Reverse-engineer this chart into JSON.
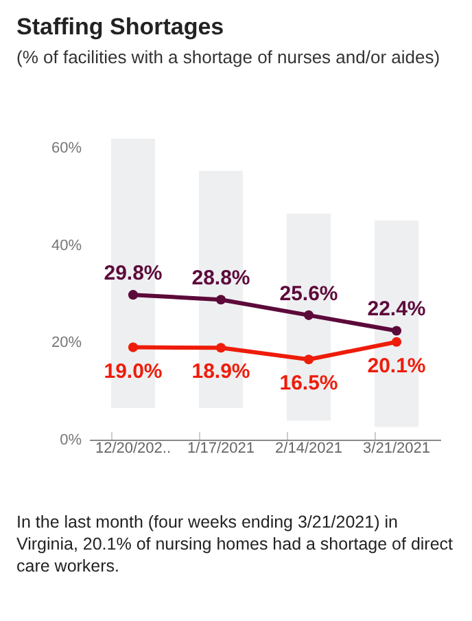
{
  "chart_data": {
    "type": "line",
    "title": "Staffing Shortages",
    "subtitle": "(% of facilities with a shortage of nurses and/or aides)",
    "categories": [
      "12/20/202..",
      "1/17/2021",
      "2/14/2021",
      "3/21/2021"
    ],
    "series": [
      {
        "type": "bar",
        "color": "#eeeff1",
        "base": [
          6.5,
          6.5,
          3.9,
          2.6
        ],
        "values": [
          55.4,
          48.8,
          42.6,
          42.5
        ]
      },
      {
        "color": "#5c0a3a",
        "values": [
          29.8,
          28.8,
          25.6,
          22.4
        ],
        "value_labels": [
          "29.8%",
          "28.8%",
          "25.6%",
          "22.4%"
        ]
      },
      {
        "color": "#ee1c0a",
        "values": [
          19.0,
          18.9,
          16.5,
          20.1
        ],
        "value_labels": [
          "19.0%",
          "18.9%",
          "16.5%",
          "20.1%"
        ]
      }
    ],
    "ylim": [
      0,
      61.9
    ],
    "yticks": [
      {
        "value": 0,
        "label": "0%"
      },
      {
        "value": 20,
        "label": "20%"
      },
      {
        "value": 40,
        "label": "40%"
      },
      {
        "value": 60,
        "label": "60%"
      }
    ],
    "grid": false,
    "marker": "circle",
    "annotations": [
      "In the last month (four weeks ending 3/21/2021) in Virginia, 20.1% of nursing homes had a shortage of direct care workers."
    ]
  }
}
